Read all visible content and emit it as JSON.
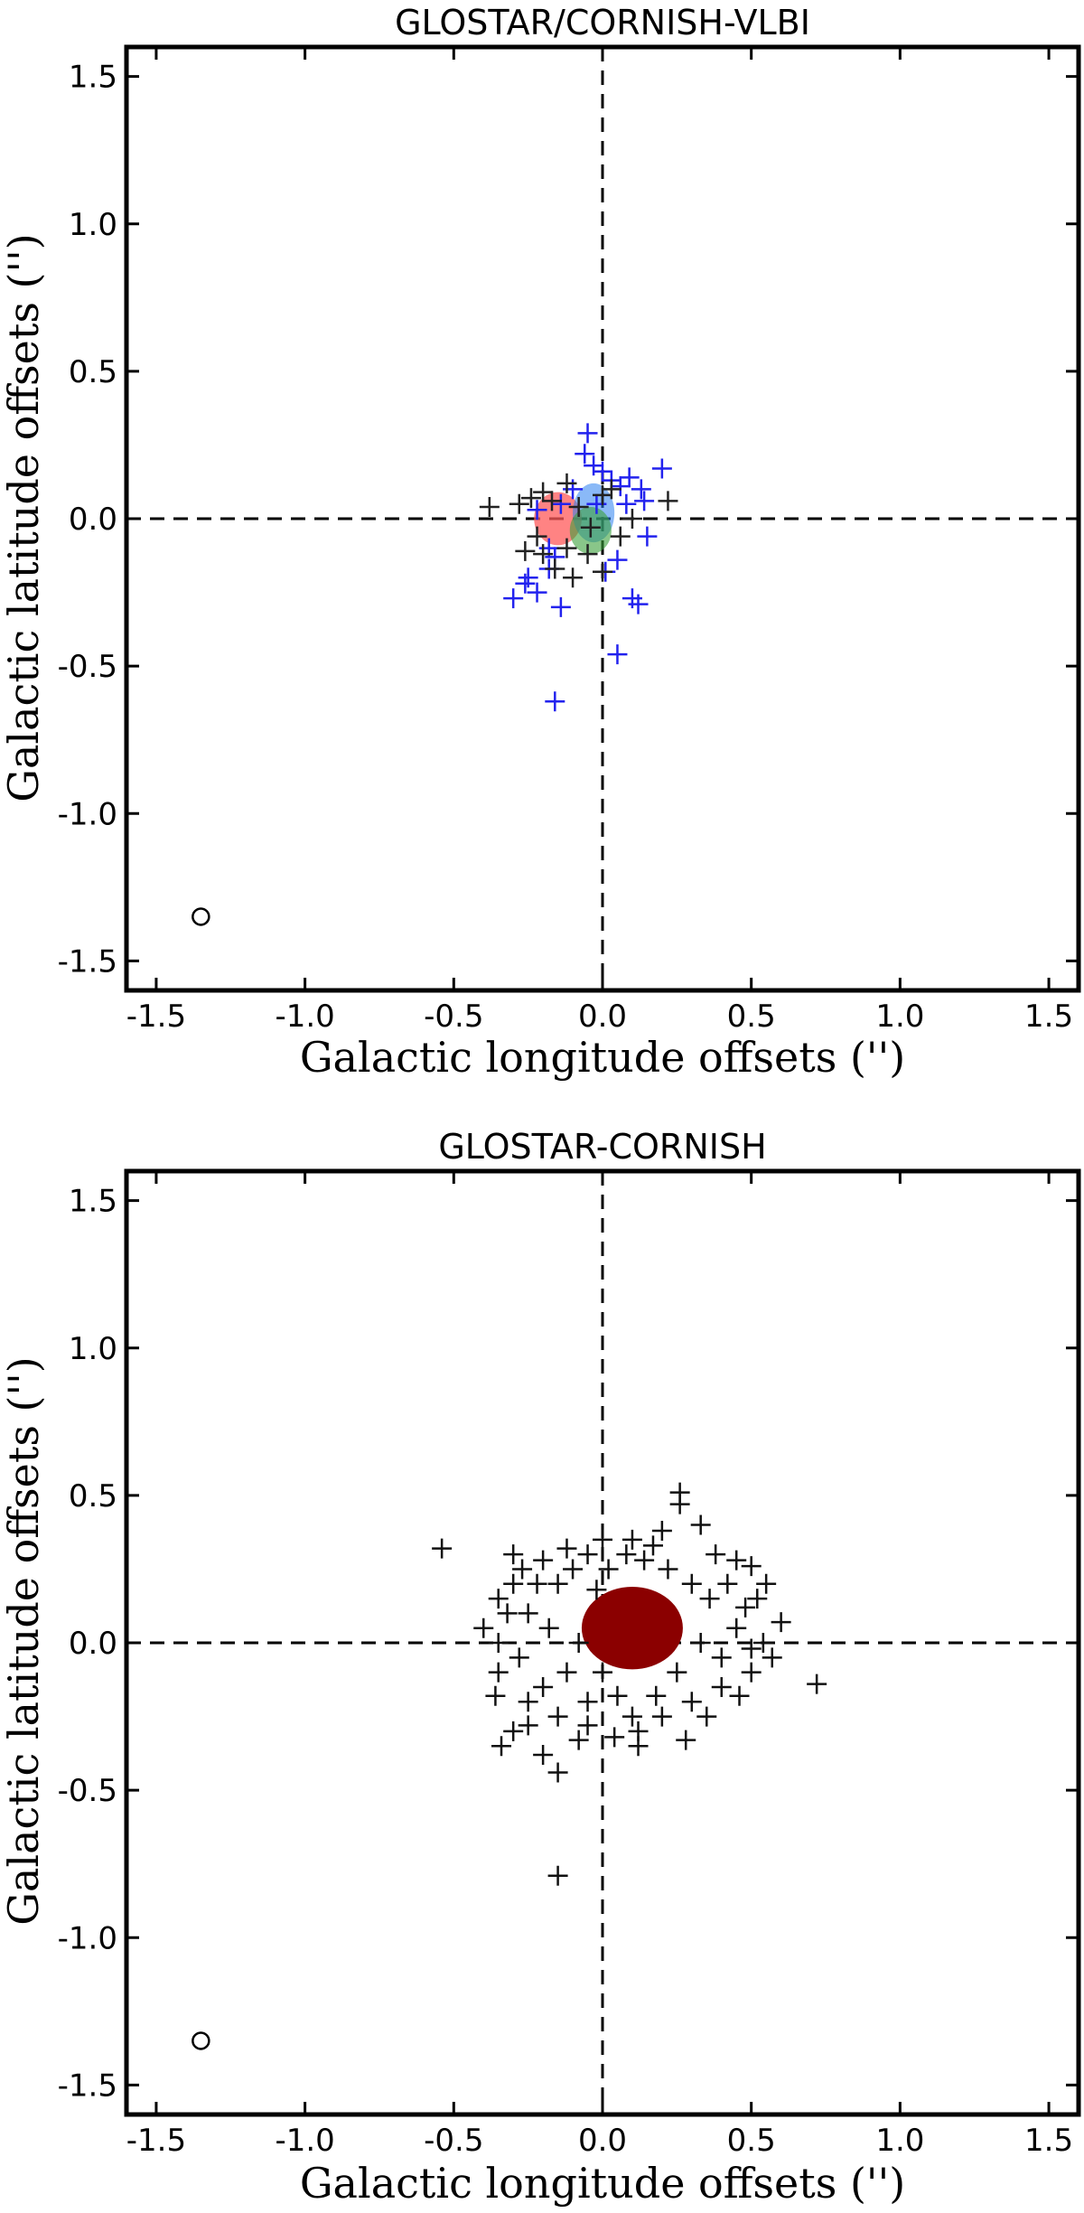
{
  "chart_data": [
    {
      "type": "scatter",
      "title": "GLOSTAR/CORNISH-VLBI",
      "xlabel": "Galactic longitude offsets ('')",
      "ylabel": "Galactic latitude offsets ('')",
      "xlim": [
        -1.6,
        1.6
      ],
      "ylim": [
        -1.6,
        1.6
      ],
      "xticks": [
        "-1.5",
        "-1.0",
        "-0.5",
        "0.0",
        "0.5",
        "1.0",
        "1.5"
      ],
      "yticks": [
        "-1.5",
        "-1.0",
        "-0.5",
        "0.0",
        "0.5",
        "1.0",
        "1.5"
      ],
      "grid": false,
      "reference_lines": {
        "x": 0,
        "y": 0,
        "style": "dashed"
      },
      "beam_marker": {
        "x": -1.35,
        "y": -1.35
      },
      "ellipses": [
        {
          "cx": -0.15,
          "cy": 0.0,
          "rx": 0.08,
          "ry": 0.09,
          "color": "#ff5a5a",
          "opacity": 0.75
        },
        {
          "cx": -0.03,
          "cy": 0.02,
          "rx": 0.07,
          "ry": 0.1,
          "color": "#2a7ff0",
          "opacity": 0.55
        },
        {
          "cx": -0.04,
          "cy": -0.04,
          "rx": 0.07,
          "ry": 0.08,
          "color": "#3aa03a",
          "opacity": 0.6
        }
      ],
      "series": [
        {
          "color": "#2222ee",
          "points": [
            [
              -0.05,
              0.29
            ],
            [
              -0.06,
              0.22
            ],
            [
              -0.03,
              0.18
            ],
            [
              0.0,
              0.16
            ],
            [
              0.2,
              0.17
            ],
            [
              0.09,
              0.14
            ],
            [
              0.13,
              0.1
            ],
            [
              0.03,
              0.13
            ],
            [
              0.06,
              0.11
            ],
            [
              0.14,
              0.06
            ],
            [
              0.15,
              -0.06
            ],
            [
              -0.1,
              0.1
            ],
            [
              -0.14,
              0.05
            ],
            [
              -0.18,
              -0.1
            ],
            [
              -0.16,
              -0.13
            ],
            [
              -0.18,
              -0.17
            ],
            [
              -0.25,
              -0.2
            ],
            [
              -0.26,
              -0.22
            ],
            [
              -0.22,
              -0.25
            ],
            [
              -0.3,
              -0.27
            ],
            [
              -0.14,
              -0.3
            ],
            [
              0.1,
              -0.27
            ],
            [
              0.12,
              -0.29
            ],
            [
              0.05,
              -0.46
            ],
            [
              -0.16,
              -0.62
            ],
            [
              0.05,
              -0.14
            ],
            [
              0.01,
              -0.18
            ],
            [
              -0.02,
              0.05
            ],
            [
              0.08,
              0.05
            ],
            [
              -0.22,
              0.03
            ]
          ]
        },
        {
          "color": "#222222",
          "points": [
            [
              -0.38,
              0.04
            ],
            [
              -0.28,
              0.05
            ],
            [
              -0.24,
              0.07
            ],
            [
              -0.2,
              0.09
            ],
            [
              -0.17,
              0.06
            ],
            [
              -0.26,
              -0.11
            ],
            [
              -0.2,
              -0.12
            ],
            [
              -0.22,
              -0.06
            ],
            [
              -0.12,
              -0.1
            ],
            [
              -0.1,
              -0.2
            ],
            [
              -0.16,
              -0.17
            ],
            [
              -0.05,
              -0.12
            ],
            [
              0.0,
              -0.18
            ],
            [
              0.0,
              0.08
            ],
            [
              0.03,
              0.1
            ],
            [
              0.06,
              -0.06
            ],
            [
              0.1,
              0.0
            ],
            [
              0.22,
              0.06
            ],
            [
              -0.08,
              0.04
            ],
            [
              -0.12,
              0.12
            ],
            [
              -0.04,
              -0.03
            ]
          ]
        }
      ]
    },
    {
      "type": "scatter",
      "title": "GLOSTAR-CORNISH",
      "xlabel": "Galactic longitude offsets ('')",
      "ylabel": "Galactic latitude offsets ('')",
      "xlim": [
        -1.6,
        1.6
      ],
      "ylim": [
        -1.6,
        1.6
      ],
      "xticks": [
        "-1.5",
        "-1.0",
        "-0.5",
        "0.0",
        "0.5",
        "1.0",
        "1.5"
      ],
      "yticks": [
        "-1.5",
        "-1.0",
        "-0.5",
        "0.0",
        "0.5",
        "1.0",
        "1.5"
      ],
      "grid": false,
      "reference_lines": {
        "x": 0,
        "y": 0,
        "style": "dashed"
      },
      "beam_marker": {
        "x": -1.35,
        "y": -1.35
      },
      "ellipses": [
        {
          "cx": 0.1,
          "cy": 0.05,
          "rx": 0.17,
          "ry": 0.14,
          "color": "#8b0000",
          "opacity": 1.0
        }
      ],
      "series": [
        {
          "color": "#111111",
          "points": [
            [
              -0.54,
              0.32
            ],
            [
              0.26,
              0.51
            ],
            [
              0.26,
              0.47
            ],
            [
              0.33,
              0.4
            ],
            [
              0.2,
              0.38
            ],
            [
              0.1,
              0.35
            ],
            [
              -0.3,
              0.3
            ],
            [
              -0.2,
              0.28
            ],
            [
              -0.05,
              0.3
            ],
            [
              0.45,
              0.28
            ],
            [
              0.5,
              0.26
            ],
            [
              0.55,
              0.2
            ],
            [
              0.6,
              0.07
            ],
            [
              0.72,
              -0.14
            ],
            [
              0.57,
              -0.05
            ],
            [
              0.5,
              -0.1
            ],
            [
              0.4,
              -0.15
            ],
            [
              0.3,
              -0.2
            ],
            [
              0.2,
              -0.25
            ],
            [
              0.28,
              -0.33
            ],
            [
              0.12,
              -0.35
            ],
            [
              0.04,
              -0.32
            ],
            [
              -0.05,
              -0.28
            ],
            [
              -0.15,
              -0.25
            ],
            [
              -0.3,
              -0.3
            ],
            [
              -0.34,
              -0.35
            ],
            [
              -0.2,
              -0.38
            ],
            [
              -0.15,
              -0.44
            ],
            [
              -0.15,
              -0.79
            ],
            [
              -0.35,
              0.15
            ],
            [
              -0.35,
              0.0
            ],
            [
              -0.35,
              -0.1
            ],
            [
              -0.3,
              0.2
            ],
            [
              -0.28,
              -0.05
            ],
            [
              -0.25,
              0.1
            ],
            [
              -0.25,
              -0.2
            ],
            [
              -0.22,
              0.2
            ],
            [
              -0.2,
              -0.15
            ],
            [
              -0.18,
              0.05
            ],
            [
              -0.15,
              0.2
            ],
            [
              -0.12,
              -0.1
            ],
            [
              -0.1,
              0.25
            ],
            [
              -0.08,
              0.0
            ],
            [
              -0.05,
              -0.2
            ],
            [
              -0.02,
              0.18
            ],
            [
              0.0,
              -0.1
            ],
            [
              0.02,
              0.25
            ],
            [
              0.05,
              -0.18
            ],
            [
              0.08,
              0.3
            ],
            [
              0.1,
              -0.25
            ],
            [
              0.14,
              0.28
            ],
            [
              0.18,
              -0.18
            ],
            [
              0.22,
              0.25
            ],
            [
              0.25,
              -0.1
            ],
            [
              0.3,
              0.2
            ],
            [
              0.33,
              0.0
            ],
            [
              0.36,
              0.15
            ],
            [
              0.4,
              -0.05
            ],
            [
              0.42,
              0.2
            ],
            [
              0.45,
              0.05
            ],
            [
              0.48,
              0.12
            ],
            [
              0.5,
              -0.02
            ],
            [
              0.35,
              -0.25
            ],
            [
              -0.4,
              0.05
            ],
            [
              -0.32,
              0.1
            ],
            [
              -0.27,
              0.25
            ],
            [
              -0.12,
              0.32
            ],
            [
              0.0,
              0.35
            ],
            [
              0.17,
              0.33
            ],
            [
              0.38,
              0.3
            ],
            [
              0.52,
              0.15
            ],
            [
              0.54,
              0.0
            ],
            [
              0.46,
              -0.18
            ],
            [
              0.12,
              -0.3
            ],
            [
              -0.08,
              -0.33
            ],
            [
              -0.25,
              -0.28
            ],
            [
              -0.36,
              -0.18
            ]
          ]
        }
      ]
    }
  ]
}
